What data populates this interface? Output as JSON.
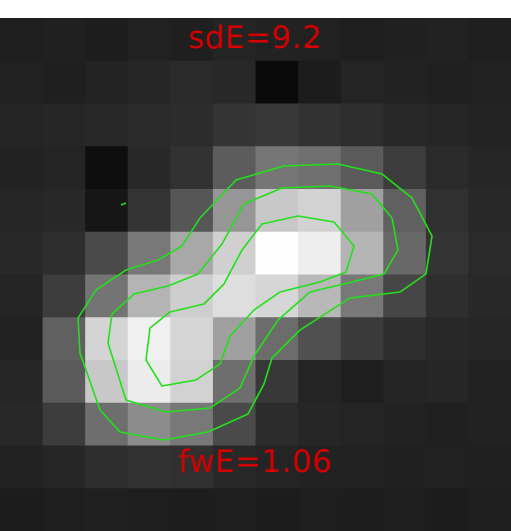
{
  "stamp": {
    "top_label": "sdE=9.2",
    "bottom_label": "fwE=1.06"
  },
  "colors": {
    "label": "#d40000",
    "contour": "#22e01a",
    "border": "#ffffff",
    "background": "#1f1f1f"
  },
  "image": {
    "cols": 12,
    "rows": 12,
    "pixels": [
      [
        30,
        32,
        29,
        33,
        31,
        36,
        34,
        33,
        30,
        32,
        34,
        31
      ],
      [
        33,
        31,
        35,
        38,
        42,
        40,
        10,
        28,
        36,
        34,
        32,
        33
      ],
      [
        36,
        38,
        40,
        42,
        44,
        52,
        56,
        50,
        46,
        40,
        38,
        35
      ],
      [
        34,
        36,
        14,
        40,
        50,
        92,
        118,
        112,
        90,
        60,
        42,
        38
      ],
      [
        38,
        40,
        22,
        52,
        86,
        150,
        200,
        210,
        160,
        96,
        48,
        40
      ],
      [
        40,
        46,
        74,
        120,
        168,
        208,
        254,
        238,
        180,
        104,
        52,
        42
      ],
      [
        36,
        60,
        116,
        180,
        206,
        222,
        214,
        184,
        120,
        70,
        46,
        40
      ],
      [
        34,
        96,
        212,
        240,
        214,
        160,
        108,
        80,
        58,
        46,
        40,
        38
      ],
      [
        38,
        90,
        200,
        236,
        210,
        110,
        56,
        36,
        30,
        36,
        38,
        34
      ],
      [
        40,
        60,
        110,
        140,
        120,
        74,
        44,
        38,
        36,
        34,
        32,
        34
      ],
      [
        34,
        38,
        46,
        50,
        48,
        40,
        36,
        34,
        33,
        32,
        33,
        32
      ],
      [
        28,
        30,
        32,
        30,
        29,
        30,
        28,
        30,
        29,
        30,
        28,
        30
      ]
    ]
  }
}
